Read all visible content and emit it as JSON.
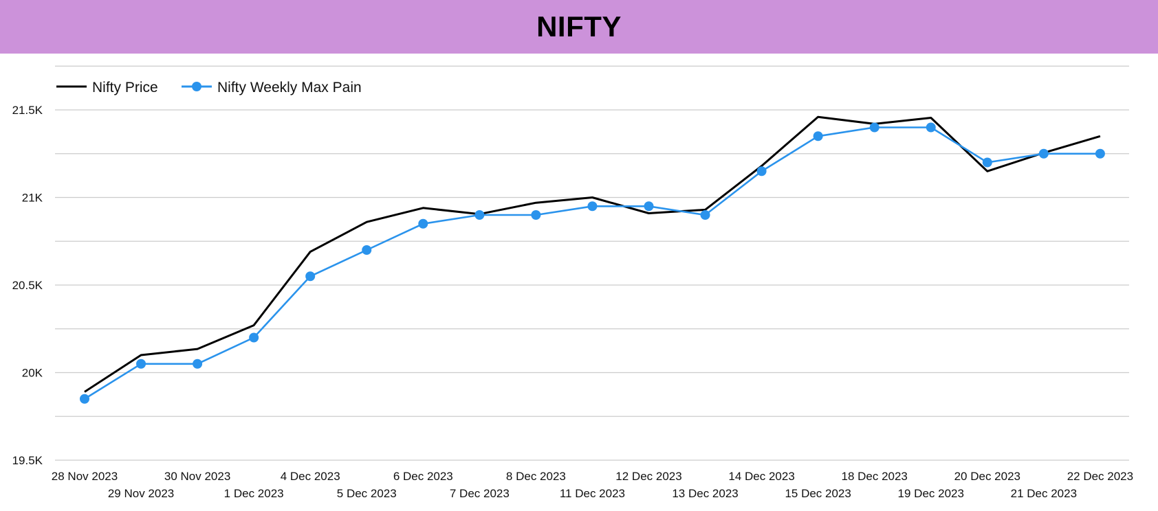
{
  "title": "NIFTY",
  "colors": {
    "title_bar": "#cc92da",
    "price_line": "#000000",
    "max_pain_line": "#2a93ec",
    "grid": "#cccccc"
  },
  "chart_data": {
    "type": "line",
    "title": "NIFTY",
    "xlabel": "",
    "ylabel": "",
    "legend_position": "top-left",
    "grid": true,
    "categories": [
      "28 Nov 2023",
      "29 Nov 2023",
      "30 Nov 2023",
      "1 Dec 2023",
      "4 Dec 2023",
      "5 Dec 2023",
      "6 Dec 2023",
      "7 Dec 2023",
      "8 Dec 2023",
      "11 Dec 2023",
      "12 Dec 2023",
      "13 Dec 2023",
      "14 Dec 2023",
      "15 Dec 2023",
      "18 Dec 2023",
      "19 Dec 2023",
      "20 Dec 2023",
      "21 Dec 2023",
      "22 Dec 2023"
    ],
    "ylim": [
      19500,
      21700
    ],
    "yticks": [
      19500,
      20000,
      20500,
      21000,
      21500
    ],
    "ytick_labels": [
      "19.5K",
      "20K",
      "20.5K",
      "21K",
      "21.5K"
    ],
    "series": [
      {
        "name": "Nifty Price",
        "color": "#000000",
        "markers": false,
        "values": [
          19890,
          20100,
          20135,
          20270,
          20690,
          20860,
          20940,
          20905,
          20970,
          21000,
          20910,
          20930,
          21180,
          21460,
          21420,
          21455,
          21150,
          21255,
          21350
        ]
      },
      {
        "name": "Nifty Weekly Max Pain",
        "color": "#2a93ec",
        "markers": true,
        "values": [
          19850,
          20050,
          20050,
          20200,
          20550,
          20700,
          20850,
          20900,
          20900,
          20950,
          20950,
          20900,
          21150,
          21350,
          21400,
          21400,
          21200,
          21250,
          21250
        ]
      }
    ]
  }
}
